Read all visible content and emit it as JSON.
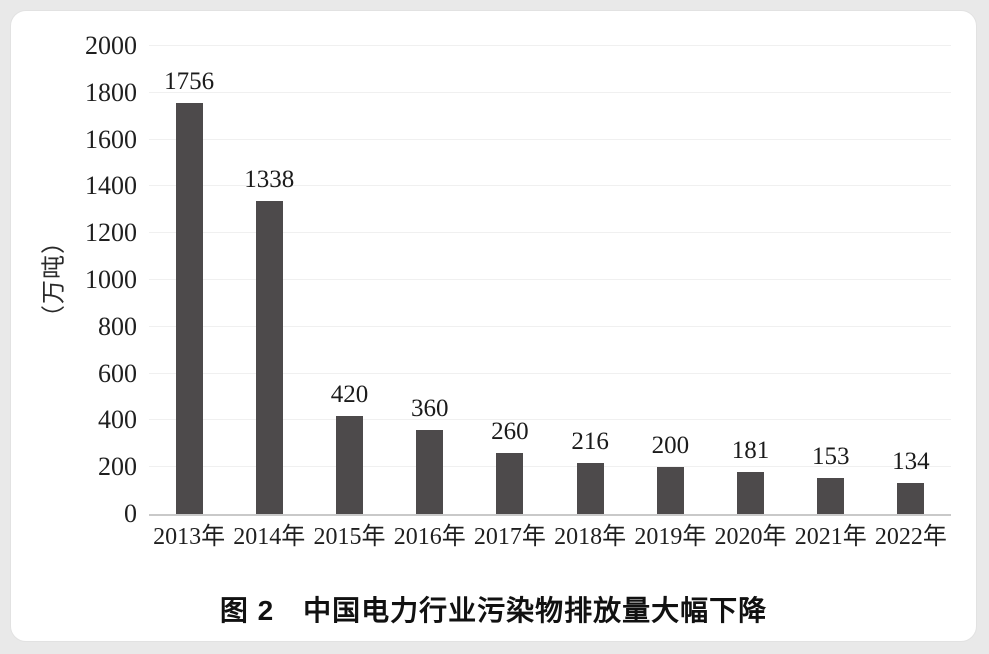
{
  "page": {
    "background_color": "#e9e9e9",
    "card_color": "#ffffff"
  },
  "chart_data": {
    "type": "bar",
    "title": "图 2　中国电力行业污染物排放量大幅下降",
    "ylabel": "（万吨）",
    "categories": [
      "2013年",
      "2014年",
      "2015年",
      "2016年",
      "2017年",
      "2018年",
      "2019年",
      "2020年",
      "2021年",
      "2022年"
    ],
    "values": [
      1756,
      1338,
      420,
      360,
      260,
      216,
      200,
      181,
      153,
      134
    ],
    "ylim": [
      0,
      2000
    ],
    "yticks": [
      0,
      200,
      400,
      600,
      800,
      1000,
      1200,
      1400,
      1600,
      1800,
      2000
    ],
    "bar_color": "#4d4a4b",
    "grid": true,
    "gridline_color": "#f0f0f0",
    "axis_line_color": "#c9c9c9",
    "legend_position": "none",
    "value_labels": true
  }
}
